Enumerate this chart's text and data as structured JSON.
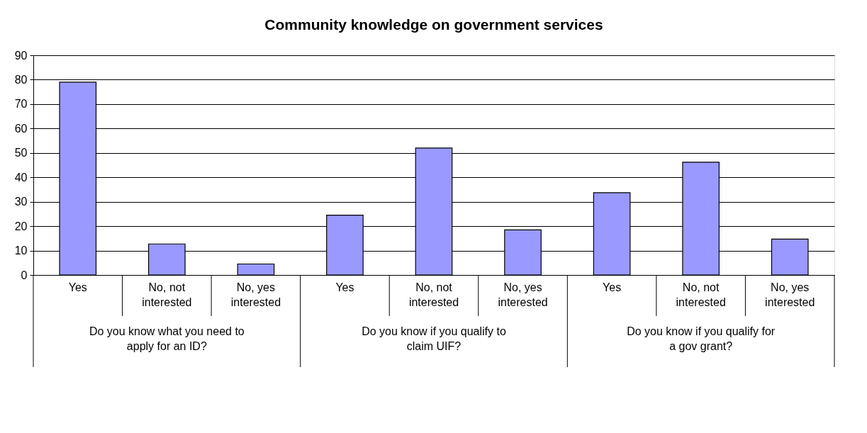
{
  "chart_data": {
    "type": "bar",
    "title": "Community knowledge on government services",
    "categories": [
      "Yes",
      "No, not interested",
      "No, yes interested",
      "Yes",
      "No, not interested",
      "No, yes interested",
      "Yes",
      "No, not interested",
      "No, yes interested"
    ],
    "values": [
      79,
      12.7,
      4.5,
      24.5,
      52,
      18.5,
      33.7,
      46.2,
      14.7
    ],
    "color": "#9999ff",
    "ylim": [
      0,
      90
    ],
    "yticks": [
      0,
      10,
      20,
      30,
      40,
      50,
      60,
      70,
      80,
      90
    ],
    "grid": "y",
    "annotations": [
      "Do you know what you need to apply for an ID?",
      "Do you know if you qualify to claim UIF?",
      "Do you know if you qualify for a gov grant?"
    ]
  }
}
